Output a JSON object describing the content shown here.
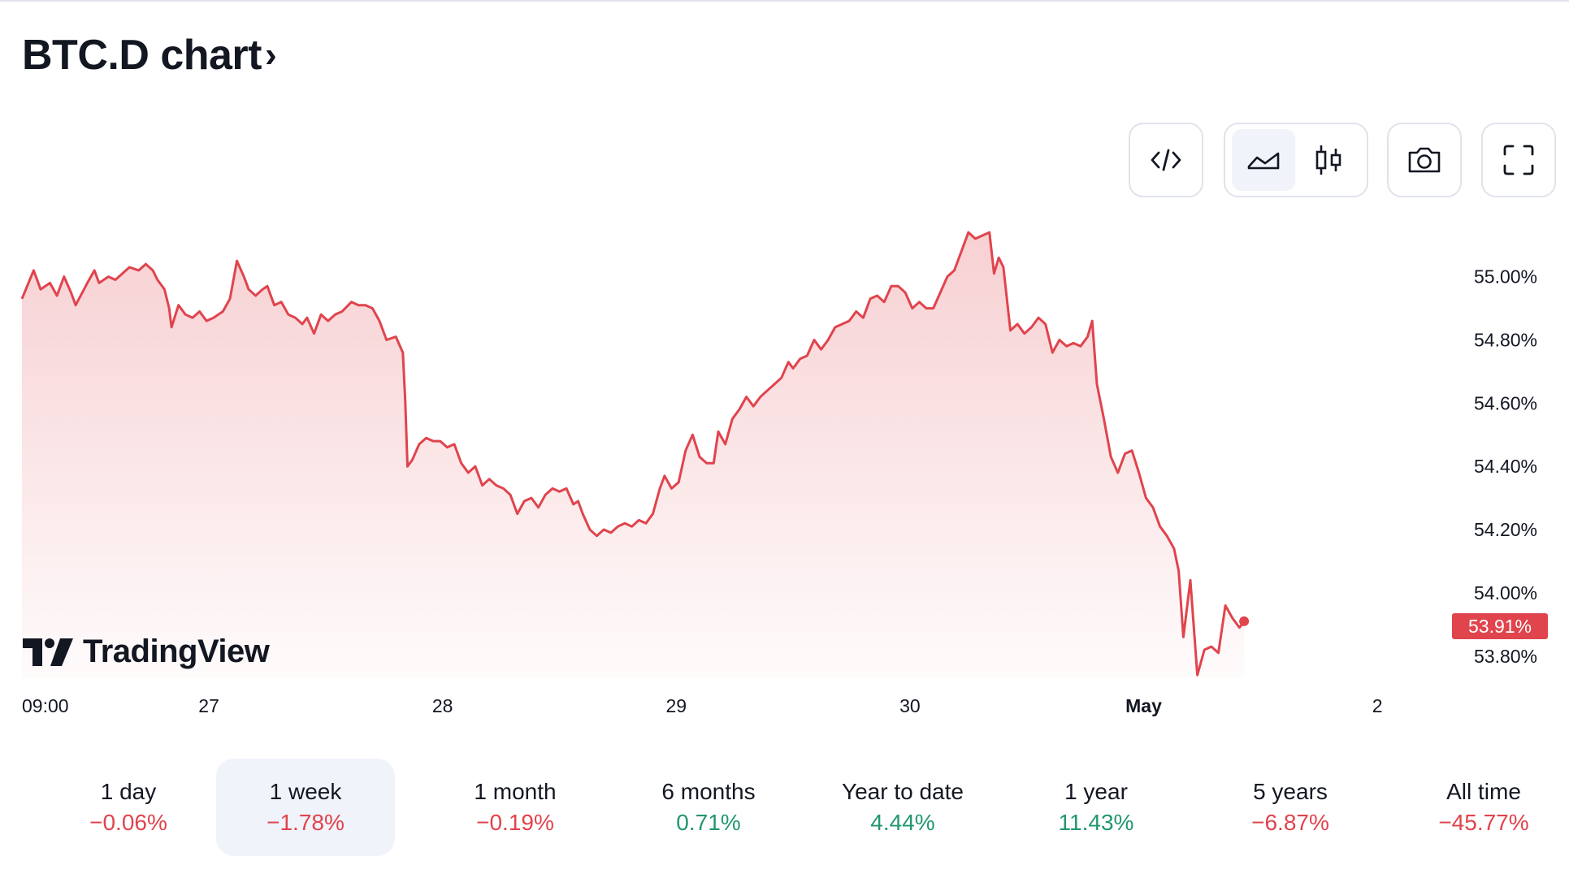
{
  "header": {
    "title": "BTC.D chart",
    "chevron": "›"
  },
  "toolbar": {
    "embed_icon": "code-icon",
    "area_icon": "area-chart-icon",
    "candle_icon": "candles-icon",
    "camera_icon": "camera-icon",
    "fullscreen_icon": "fullscreen-icon"
  },
  "colors": {
    "line": "#e0444d",
    "positive": "#22976f",
    "negative": "#e0444d",
    "active_bg": "#f0f3fa"
  },
  "chart_data": {
    "type": "area",
    "yunit": "%",
    "ylim": [
      53.73,
      55.22
    ],
    "yticks": [
      "55.00%",
      "54.80%",
      "54.60%",
      "54.40%",
      "54.20%",
      "54.00%",
      "53.80%"
    ],
    "ytick_values": [
      55.0,
      54.8,
      54.6,
      54.4,
      54.2,
      54.0,
      53.8
    ],
    "xtick_labels": [
      {
        "label": "09:00",
        "t": 0.2,
        "bold": false
      },
      {
        "label": "27",
        "t": 0.8,
        "bold": false
      },
      {
        "label": "28",
        "t": 1.8,
        "bold": false
      },
      {
        "label": "29",
        "t": 2.8,
        "bold": false
      },
      {
        "label": "30",
        "t": 3.8,
        "bold": false
      },
      {
        "label": "May",
        "t": 4.8,
        "bold": true
      },
      {
        "label": "2",
        "t": 5.8,
        "bold": false
      }
    ],
    "xlim": [
      0,
      6.18
    ],
    "last_value_label": "53.91%",
    "series": [
      {
        "values": [
          [
            0.0,
            54.93
          ],
          [
            0.05,
            55.02
          ],
          [
            0.08,
            54.96
          ],
          [
            0.12,
            54.98
          ],
          [
            0.15,
            54.94
          ],
          [
            0.18,
            55.0
          ],
          [
            0.21,
            54.95
          ],
          [
            0.23,
            54.91
          ],
          [
            0.28,
            54.98
          ],
          [
            0.31,
            55.02
          ],
          [
            0.33,
            54.98
          ],
          [
            0.37,
            55.0
          ],
          [
            0.4,
            54.99
          ],
          [
            0.46,
            55.03
          ],
          [
            0.5,
            55.02
          ],
          [
            0.53,
            55.04
          ],
          [
            0.56,
            55.02
          ],
          [
            0.58,
            54.99
          ],
          [
            0.61,
            54.96
          ],
          [
            0.63,
            54.9
          ],
          [
            0.64,
            54.84
          ],
          [
            0.67,
            54.91
          ],
          [
            0.7,
            54.88
          ],
          [
            0.73,
            54.87
          ],
          [
            0.76,
            54.89
          ],
          [
            0.79,
            54.86
          ],
          [
            0.82,
            54.87
          ],
          [
            0.86,
            54.89
          ],
          [
            0.89,
            54.93
          ],
          [
            0.92,
            55.05
          ],
          [
            0.95,
            55.0
          ],
          [
            0.97,
            54.96
          ],
          [
            1.0,
            54.94
          ],
          [
            1.03,
            54.96
          ],
          [
            1.05,
            54.97
          ],
          [
            1.08,
            54.91
          ],
          [
            1.11,
            54.92
          ],
          [
            1.14,
            54.88
          ],
          [
            1.17,
            54.87
          ],
          [
            1.2,
            54.85
          ],
          [
            1.22,
            54.87
          ],
          [
            1.25,
            54.82
          ],
          [
            1.28,
            54.88
          ],
          [
            1.31,
            54.86
          ],
          [
            1.34,
            54.88
          ],
          [
            1.37,
            54.89
          ],
          [
            1.41,
            54.92
          ],
          [
            1.44,
            54.91
          ],
          [
            1.47,
            54.91
          ],
          [
            1.5,
            54.9
          ],
          [
            1.53,
            54.86
          ],
          [
            1.56,
            54.8
          ],
          [
            1.6,
            54.81
          ],
          [
            1.63,
            54.76
          ],
          [
            1.64,
            54.61
          ],
          [
            1.65,
            54.4
          ],
          [
            1.67,
            54.42
          ],
          [
            1.7,
            54.47
          ],
          [
            1.73,
            54.49
          ],
          [
            1.76,
            54.48
          ],
          [
            1.79,
            54.48
          ],
          [
            1.82,
            54.46
          ],
          [
            1.85,
            54.47
          ],
          [
            1.88,
            54.41
          ],
          [
            1.91,
            54.38
          ],
          [
            1.94,
            54.4
          ],
          [
            1.97,
            54.34
          ],
          [
            2.0,
            54.36
          ],
          [
            2.03,
            54.34
          ],
          [
            2.06,
            54.33
          ],
          [
            2.09,
            54.31
          ],
          [
            2.12,
            54.25
          ],
          [
            2.15,
            54.29
          ],
          [
            2.18,
            54.3
          ],
          [
            2.21,
            54.27
          ],
          [
            2.24,
            54.31
          ],
          [
            2.27,
            54.33
          ],
          [
            2.3,
            54.32
          ],
          [
            2.33,
            54.33
          ],
          [
            2.36,
            54.28
          ],
          [
            2.38,
            54.29
          ],
          [
            2.4,
            54.25
          ],
          [
            2.43,
            54.2
          ],
          [
            2.46,
            54.18
          ],
          [
            2.49,
            54.2
          ],
          [
            2.52,
            54.19
          ],
          [
            2.55,
            54.21
          ],
          [
            2.58,
            54.22
          ],
          [
            2.61,
            54.21
          ],
          [
            2.64,
            54.23
          ],
          [
            2.67,
            54.22
          ],
          [
            2.7,
            54.25
          ],
          [
            2.73,
            54.33
          ],
          [
            2.75,
            54.37
          ],
          [
            2.78,
            54.33
          ],
          [
            2.81,
            54.35
          ],
          [
            2.84,
            54.45
          ],
          [
            2.87,
            54.5
          ],
          [
            2.9,
            54.43
          ],
          [
            2.93,
            54.41
          ],
          [
            2.96,
            54.41
          ],
          [
            2.98,
            54.51
          ],
          [
            3.01,
            54.47
          ],
          [
            3.04,
            54.55
          ],
          [
            3.07,
            54.58
          ],
          [
            3.1,
            54.62
          ],
          [
            3.13,
            54.59
          ],
          [
            3.16,
            54.62
          ],
          [
            3.19,
            54.64
          ],
          [
            3.22,
            54.66
          ],
          [
            3.25,
            54.68
          ],
          [
            3.28,
            54.73
          ],
          [
            3.3,
            54.71
          ],
          [
            3.33,
            54.74
          ],
          [
            3.36,
            54.75
          ],
          [
            3.39,
            54.8
          ],
          [
            3.42,
            54.77
          ],
          [
            3.45,
            54.8
          ],
          [
            3.48,
            54.84
          ],
          [
            3.51,
            54.85
          ],
          [
            3.54,
            54.86
          ],
          [
            3.57,
            54.89
          ],
          [
            3.6,
            54.87
          ],
          [
            3.63,
            54.93
          ],
          [
            3.66,
            54.94
          ],
          [
            3.69,
            54.92
          ],
          [
            3.72,
            54.97
          ],
          [
            3.75,
            54.97
          ],
          [
            3.78,
            54.95
          ],
          [
            3.81,
            54.9
          ],
          [
            3.84,
            54.92
          ],
          [
            3.87,
            54.9
          ],
          [
            3.9,
            54.9
          ],
          [
            3.93,
            54.95
          ],
          [
            3.96,
            55.0
          ],
          [
            3.99,
            55.02
          ],
          [
            4.02,
            55.08
          ],
          [
            4.05,
            55.14
          ],
          [
            4.08,
            55.12
          ],
          [
            4.11,
            55.13
          ],
          [
            4.14,
            55.14
          ],
          [
            4.16,
            55.01
          ],
          [
            4.18,
            55.06
          ],
          [
            4.2,
            55.03
          ],
          [
            4.23,
            54.83
          ],
          [
            4.26,
            54.85
          ],
          [
            4.29,
            54.82
          ],
          [
            4.32,
            54.84
          ],
          [
            4.35,
            54.87
          ],
          [
            4.38,
            54.85
          ],
          [
            4.41,
            54.76
          ],
          [
            4.44,
            54.8
          ],
          [
            4.47,
            54.78
          ],
          [
            4.5,
            54.79
          ],
          [
            4.53,
            54.78
          ],
          [
            4.56,
            54.81
          ],
          [
            4.58,
            54.86
          ],
          [
            4.6,
            54.66
          ],
          [
            4.63,
            54.55
          ],
          [
            4.66,
            54.43
          ],
          [
            4.69,
            54.38
          ],
          [
            4.72,
            54.44
          ],
          [
            4.75,
            54.45
          ],
          [
            4.78,
            54.38
          ],
          [
            4.81,
            54.3
          ],
          [
            4.84,
            54.27
          ],
          [
            4.87,
            54.21
          ],
          [
            4.9,
            54.18
          ],
          [
            4.93,
            54.14
          ],
          [
            4.95,
            54.07
          ],
          [
            4.97,
            53.86
          ],
          [
            5.0,
            54.04
          ],
          [
            5.03,
            53.74
          ],
          [
            5.06,
            53.82
          ],
          [
            5.09,
            53.83
          ],
          [
            5.12,
            53.81
          ],
          [
            5.15,
            53.96
          ],
          [
            5.18,
            53.92
          ],
          [
            5.21,
            53.89
          ],
          [
            5.23,
            53.91
          ]
        ]
      }
    ]
  },
  "periods": [
    {
      "label": "1 day",
      "value": "−0.06%",
      "sign": "neg",
      "active": false
    },
    {
      "label": "1 week",
      "value": "−1.78%",
      "sign": "neg",
      "active": true
    },
    {
      "label": "1 month",
      "value": "−0.19%",
      "sign": "neg",
      "active": false
    },
    {
      "label": "6 months",
      "value": "0.71%",
      "sign": "pos",
      "active": false
    },
    {
      "label": "Year to date",
      "value": "4.44%",
      "sign": "pos",
      "active": false
    },
    {
      "label": "1 year",
      "value": "11.43%",
      "sign": "pos",
      "active": false
    },
    {
      "label": "5 years",
      "value": "−6.87%",
      "sign": "neg",
      "active": false
    },
    {
      "label": "All time",
      "value": "−45.77%",
      "sign": "neg",
      "active": false
    }
  ],
  "watermark": {
    "text": "TradingView"
  }
}
